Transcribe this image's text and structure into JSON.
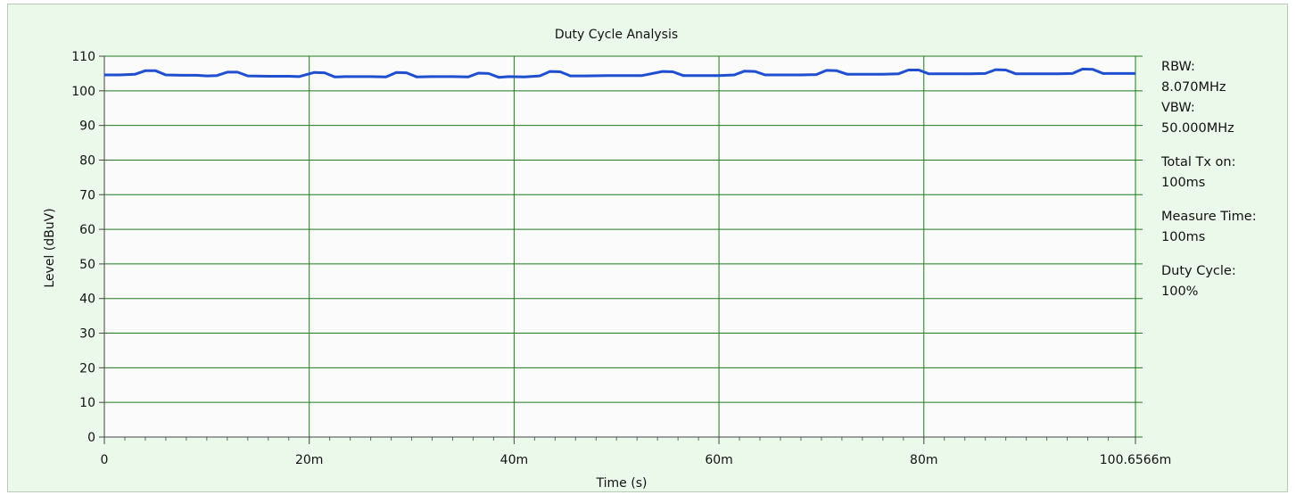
{
  "chart_data": {
    "type": "line",
    "title": "Duty Cycle Analysis",
    "xlabel": "Time (s)",
    "ylabel": "Level (dBuV)",
    "xlim": [
      0,
      0.1006566
    ],
    "ylim": [
      0,
      110
    ],
    "x_ticks": [
      {
        "value": 0,
        "label": "0"
      },
      {
        "value": 0.02,
        "label": "20m"
      },
      {
        "value": 0.04,
        "label": "40m"
      },
      {
        "value": 0.06,
        "label": "60m"
      },
      {
        "value": 0.08,
        "label": "80m"
      },
      {
        "value": 0.1006566,
        "label": "100.6566m"
      }
    ],
    "y_ticks": [
      {
        "value": 0,
        "label": "0"
      },
      {
        "value": 10,
        "label": "10"
      },
      {
        "value": 20,
        "label": "20"
      },
      {
        "value": 30,
        "label": "30"
      },
      {
        "value": 40,
        "label": "40"
      },
      {
        "value": 50,
        "label": "50"
      },
      {
        "value": 60,
        "label": "60"
      },
      {
        "value": 70,
        "label": "70"
      },
      {
        "value": 80,
        "label": "80"
      },
      {
        "value": 90,
        "label": "90"
      },
      {
        "value": 100,
        "label": "100"
      },
      {
        "value": 110,
        "label": "110"
      }
    ],
    "grid": true,
    "series": [
      {
        "color": "#1f4fd0",
        "x": [
          0,
          0.0015,
          0.003,
          0.004,
          0.005,
          0.006,
          0.0075,
          0.009,
          0.01,
          0.011,
          0.012,
          0.013,
          0.014,
          0.016,
          0.018,
          0.019,
          0.0205,
          0.0215,
          0.0225,
          0.0235,
          0.0245,
          0.026,
          0.0275,
          0.0285,
          0.0295,
          0.0305,
          0.032,
          0.034,
          0.0355,
          0.0365,
          0.0375,
          0.0385,
          0.0395,
          0.041,
          0.0425,
          0.0435,
          0.0445,
          0.0455,
          0.047,
          0.049,
          0.051,
          0.0525,
          0.0545,
          0.0555,
          0.0565,
          0.058,
          0.06,
          0.0615,
          0.0625,
          0.0635,
          0.0645,
          0.066,
          0.068,
          0.0695,
          0.0705,
          0.0715,
          0.0725,
          0.074,
          0.076,
          0.0775,
          0.0785,
          0.0795,
          0.0805,
          0.082,
          0.0845,
          0.086,
          0.087,
          0.088,
          0.089,
          0.091,
          0.093,
          0.0945,
          0.0955,
          0.0965,
          0.0975,
          0.099,
          0.1006566
        ],
        "y": [
          104.6,
          104.6,
          104.8,
          105.8,
          105.8,
          104.6,
          104.5,
          104.5,
          104.3,
          104.4,
          105.4,
          105.4,
          104.3,
          104.2,
          104.2,
          104.1,
          105.3,
          105.2,
          104.0,
          104.1,
          104.1,
          104.1,
          104.0,
          105.3,
          105.2,
          104.0,
          104.1,
          104.1,
          104.0,
          105.1,
          105.0,
          103.9,
          104.1,
          104.0,
          104.3,
          105.6,
          105.5,
          104.3,
          104.3,
          104.4,
          104.4,
          104.4,
          105.6,
          105.5,
          104.4,
          104.4,
          104.4,
          104.6,
          105.7,
          105.6,
          104.6,
          104.6,
          104.6,
          104.7,
          105.9,
          105.8,
          104.8,
          104.8,
          104.8,
          104.9,
          106.0,
          106.0,
          104.9,
          104.9,
          104.9,
          105.0,
          106.1,
          106.0,
          104.9,
          104.9,
          104.9,
          105.0,
          106.3,
          106.2,
          105.0,
          105.0,
          105.0
        ]
      }
    ]
  },
  "info": [
    {
      "label": "RBW:",
      "value": "8.070MHz"
    },
    {
      "label": "VBW:",
      "value": "50.000MHz"
    },
    {
      "label": "Total Tx on:",
      "value": "100ms"
    },
    {
      "label": "Measure Time:",
      "value": "100ms"
    },
    {
      "label": "Duty Cycle:",
      "value": "100%"
    }
  ]
}
